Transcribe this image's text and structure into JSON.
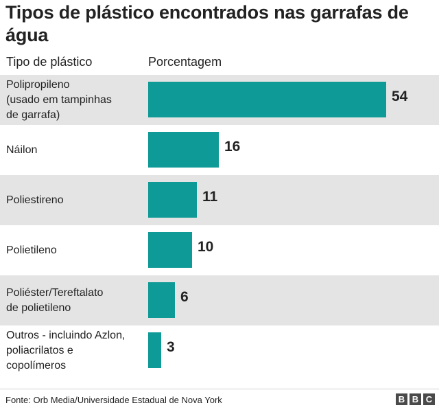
{
  "chart_data": {
    "type": "bar",
    "orientation": "horizontal",
    "title": "Tipos de plástico encontrados nas garrafas de água",
    "column_headers": {
      "category": "Tipo de plástico",
      "value": "Porcentagem"
    },
    "categories": [
      "Polipropileno\n(usado em tampinhas\nde garrafa)",
      "Náilon",
      "Poliestireno",
      "Polietileno",
      "Poliéster/Tereftalato\nde polietileno",
      "Outros - incluindo Azlon,\npoliacrilatos e\ncopolímeros"
    ],
    "values": [
      54,
      16,
      11,
      10,
      6,
      3
    ],
    "value_labels": [
      "54",
      "16",
      "11",
      "10",
      "6",
      "3"
    ],
    "xlim": [
      0,
      54
    ],
    "bar_color": "#0e9a96",
    "row_shading": [
      "#e4e4e4",
      "#ffffff"
    ],
    "grid": false,
    "legend": "none"
  },
  "footer": {
    "source": "Fonte: Orb Media/Universidade Estadual de Nova York",
    "logo_letters": [
      "B",
      "B",
      "C"
    ]
  }
}
